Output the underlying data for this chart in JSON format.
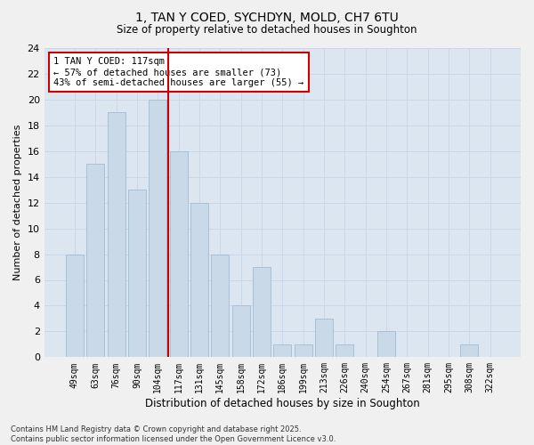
{
  "title_line1": "1, TAN Y COED, SYCHDYN, MOLD, CH7 6TU",
  "title_line2": "Size of property relative to detached houses in Soughton",
  "xlabel": "Distribution of detached houses by size in Soughton",
  "ylabel": "Number of detached properties",
  "bar_labels": [
    "49sqm",
    "63sqm",
    "76sqm",
    "90sqm",
    "104sqm",
    "117sqm",
    "131sqm",
    "145sqm",
    "158sqm",
    "172sqm",
    "186sqm",
    "199sqm",
    "213sqm",
    "226sqm",
    "240sqm",
    "254sqm",
    "267sqm",
    "281sqm",
    "295sqm",
    "308sqm",
    "322sqm"
  ],
  "bar_values": [
    8,
    15,
    19,
    13,
    20,
    16,
    12,
    8,
    4,
    7,
    1,
    1,
    3,
    1,
    0,
    2,
    0,
    0,
    0,
    1,
    0
  ],
  "bar_color": "#c9d9e8",
  "bar_edgecolor": "#a0bcd4",
  "vline_x": 4.5,
  "vline_color": "#cc0000",
  "annotation_text": "1 TAN Y COED: 117sqm\n← 57% of detached houses are smaller (73)\n43% of semi-detached houses are larger (55) →",
  "annotation_box_edgecolor": "#cc0000",
  "ylim": [
    0,
    24
  ],
  "yticks": [
    0,
    2,
    4,
    6,
    8,
    10,
    12,
    14,
    16,
    18,
    20,
    22,
    24
  ],
  "grid_color": "#c8d4e8",
  "bg_color": "#dce6f0",
  "fig_bg_color": "#f0f0f0",
  "footer": "Contains HM Land Registry data © Crown copyright and database right 2025.\nContains public sector information licensed under the Open Government Licence v3.0."
}
